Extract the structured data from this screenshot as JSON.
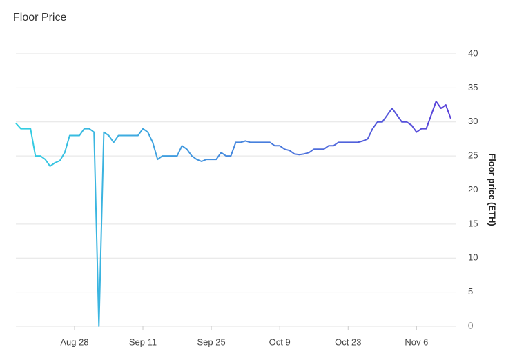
{
  "chart_data": {
    "type": "line",
    "title": "Floor Price",
    "y_label": "Floor price (ETH)",
    "x": [
      "Aug 16",
      "Aug 17",
      "Aug 18",
      "Aug 19",
      "Aug 20",
      "Aug 21",
      "Aug 22",
      "Aug 23",
      "Aug 24",
      "Aug 25",
      "Aug 26",
      "Aug 27",
      "Aug 28",
      "Aug 29",
      "Aug 30",
      "Aug 31",
      "Sep 1",
      "Sep 2",
      "Sep 3",
      "Sep 4",
      "Sep 5",
      "Sep 6",
      "Sep 7",
      "Sep 8",
      "Sep 9",
      "Sep 10",
      "Sep 11",
      "Sep 12",
      "Sep 13",
      "Sep 14",
      "Sep 15",
      "Sep 16",
      "Sep 17",
      "Sep 18",
      "Sep 19",
      "Sep 20",
      "Sep 21",
      "Sep 22",
      "Sep 23",
      "Sep 24",
      "Sep 25",
      "Sep 26",
      "Sep 27",
      "Sep 28",
      "Sep 29",
      "Sep 30",
      "Oct 1",
      "Oct 2",
      "Oct 3",
      "Oct 4",
      "Oct 5",
      "Oct 6",
      "Oct 7",
      "Oct 8",
      "Oct 9",
      "Oct 10",
      "Oct 11",
      "Oct 12",
      "Oct 13",
      "Oct 14",
      "Oct 15",
      "Oct 16",
      "Oct 17",
      "Oct 18",
      "Oct 19",
      "Oct 20",
      "Oct 21",
      "Oct 22",
      "Oct 23",
      "Oct 24",
      "Oct 25",
      "Oct 26",
      "Oct 27",
      "Oct 28",
      "Oct 29",
      "Oct 30",
      "Oct 31",
      "Nov 1",
      "Nov 2",
      "Nov 3",
      "Nov 4",
      "Nov 5",
      "Nov 6",
      "Nov 7",
      "Nov 8",
      "Nov 9",
      "Nov 10",
      "Nov 11",
      "Nov 12",
      "Nov 13"
    ],
    "series": [
      {
        "name": "Floor price (ETH)",
        "gradient": [
          "#33d0e2",
          "#5a3fd9"
        ],
        "values": [
          29.8,
          29,
          29,
          29,
          25,
          25,
          24.5,
          23.5,
          24,
          24.3,
          25.5,
          28,
          28,
          28,
          29,
          29,
          28.5,
          0,
          28.5,
          28,
          27,
          28,
          28,
          28,
          28,
          28,
          29,
          28.5,
          27,
          24.5,
          25,
          25,
          25,
          25,
          26.5,
          26,
          25,
          24.5,
          24.2,
          24.5,
          24.5,
          24.5,
          25.5,
          25,
          25,
          27,
          27,
          27.2,
          27,
          27,
          27,
          27,
          27,
          26.5,
          26.5,
          26,
          25.8,
          25.3,
          25.2,
          25.3,
          25.5,
          26,
          26,
          26,
          26.5,
          26.5,
          27,
          27,
          27,
          27,
          27,
          27.2,
          27.5,
          29,
          30,
          30,
          31,
          32,
          31,
          30,
          30,
          29.5,
          28.5,
          29,
          29,
          31,
          33,
          32,
          32.5,
          30.5
        ]
      }
    ],
    "xlim": [
      "Aug 16",
      "Nov 14"
    ],
    "xticks": [
      "Aug 28",
      "Sep 11",
      "Sep 25",
      "Oct 9",
      "Oct 23",
      "Nov 6"
    ],
    "ylim": [
      0,
      40
    ],
    "yticks": [
      0,
      5,
      10,
      15,
      20,
      25,
      30,
      35,
      40
    ],
    "grid": true
  }
}
